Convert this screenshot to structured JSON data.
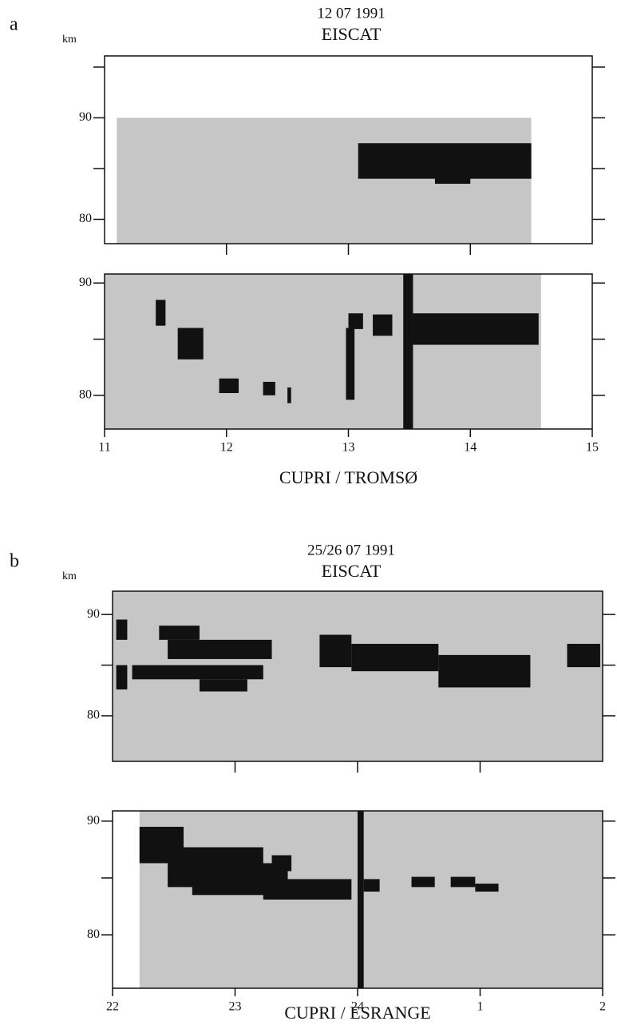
{
  "chart_data": [
    {
      "type": "echo",
      "panel_label": "a",
      "title": "12 07 1991",
      "subtitle": "EISCAT",
      "ylabel": "km",
      "xlim": [
        11,
        15
      ],
      "minor_xticks": [
        12,
        13,
        14
      ],
      "ylim": [
        77.6,
        96.1
      ],
      "yticks": [
        80,
        90
      ],
      "minor_yticks": [
        85,
        95
      ],
      "coverage": [
        11.1,
        14.5,
        77.6,
        90
      ],
      "echoes": [
        [
          13.08,
          14.5,
          84,
          87.5
        ],
        [
          13.71,
          14.0,
          83.5,
          85
        ]
      ]
    },
    {
      "type": "echo",
      "xlabel": "CUPRI / TROMSØ",
      "xlim": [
        11,
        15
      ],
      "xticks": [
        11,
        12,
        13,
        14,
        15
      ],
      "ylim": [
        77,
        90.8
      ],
      "yticks": [
        80,
        90
      ],
      "minor_yticks": [
        85
      ],
      "coverage": [
        11,
        14.58,
        77,
        90.8
      ],
      "echoes": [
        [
          11.42,
          11.5,
          86.2,
          88.5
        ],
        [
          11.6,
          11.81,
          83.2,
          86
        ],
        [
          11.94,
          12.1,
          80.2,
          81.5
        ],
        [
          12.3,
          12.4,
          80,
          81.2
        ],
        [
          12.5,
          12.53,
          79.3,
          80.7
        ],
        [
          12.98,
          13.05,
          79.6,
          86
        ],
        [
          13.0,
          13.12,
          85.9,
          87.3
        ],
        [
          13.2,
          13.36,
          85.3,
          87.2
        ],
        [
          13.45,
          13.53,
          77,
          90.8
        ],
        [
          13.53,
          14.56,
          84.5,
          87.3
        ]
      ]
    },
    {
      "type": "echo",
      "panel_label": "b",
      "title": "25/26 07 1991",
      "subtitle": "EISCAT",
      "ylabel": "km",
      "xlim": [
        22,
        26
      ],
      "minor_xticks": [
        23,
        24,
        25
      ],
      "ylim": [
        75.5,
        92.3
      ],
      "yticks": [
        80,
        90
      ],
      "minor_yticks": [
        85
      ],
      "coverage": [
        22,
        26,
        75.5,
        92.3
      ],
      "echoes": [
        [
          22.03,
          22.12,
          87.5,
          89.5
        ],
        [
          22.03,
          22.12,
          82.6,
          85
        ],
        [
          22.38,
          22.71,
          87.5,
          88.9
        ],
        [
          22.45,
          23.3,
          85.6,
          87.5
        ],
        [
          22.16,
          23.23,
          83.6,
          85
        ],
        [
          22.71,
          23.1,
          82.4,
          83.6
        ],
        [
          23.69,
          23.95,
          84.8,
          88
        ],
        [
          23.95,
          24.66,
          84.4,
          87.1
        ],
        [
          24.66,
          25.41,
          82.8,
          86
        ],
        [
          25.71,
          25.98,
          84.8,
          87.1
        ]
      ]
    },
    {
      "type": "echo",
      "xlabel": "CUPRI / ESRANGE",
      "xlim": [
        22,
        26
      ],
      "xticks": [
        22,
        23,
        24,
        {
          "value": 25,
          "label": "1"
        },
        {
          "value": 26,
          "label": "2"
        }
      ],
      "ylim": [
        75.3,
        90.9
      ],
      "yticks": [
        80,
        90
      ],
      "minor_yticks": [
        85
      ],
      "coverage": [
        22.22,
        26,
        75.3,
        90.9
      ],
      "echoes": [
        [
          22.22,
          22.58,
          86.3,
          89.5
        ],
        [
          22.45,
          23.23,
          84.2,
          87.7
        ],
        [
          22.65,
          23.43,
          83.5,
          86.3
        ],
        [
          23.23,
          23.95,
          83.1,
          84.9
        ],
        [
          23.3,
          23.46,
          85.6,
          87
        ],
        [
          24.0,
          24.05,
          75.3,
          90.9
        ],
        [
          24.05,
          24.18,
          83.8,
          84.9
        ],
        [
          24.44,
          24.63,
          84.2,
          85.1
        ],
        [
          24.76,
          24.96,
          84.2,
          85.1
        ],
        [
          24.96,
          25.15,
          83.8,
          84.5
        ]
      ]
    }
  ]
}
